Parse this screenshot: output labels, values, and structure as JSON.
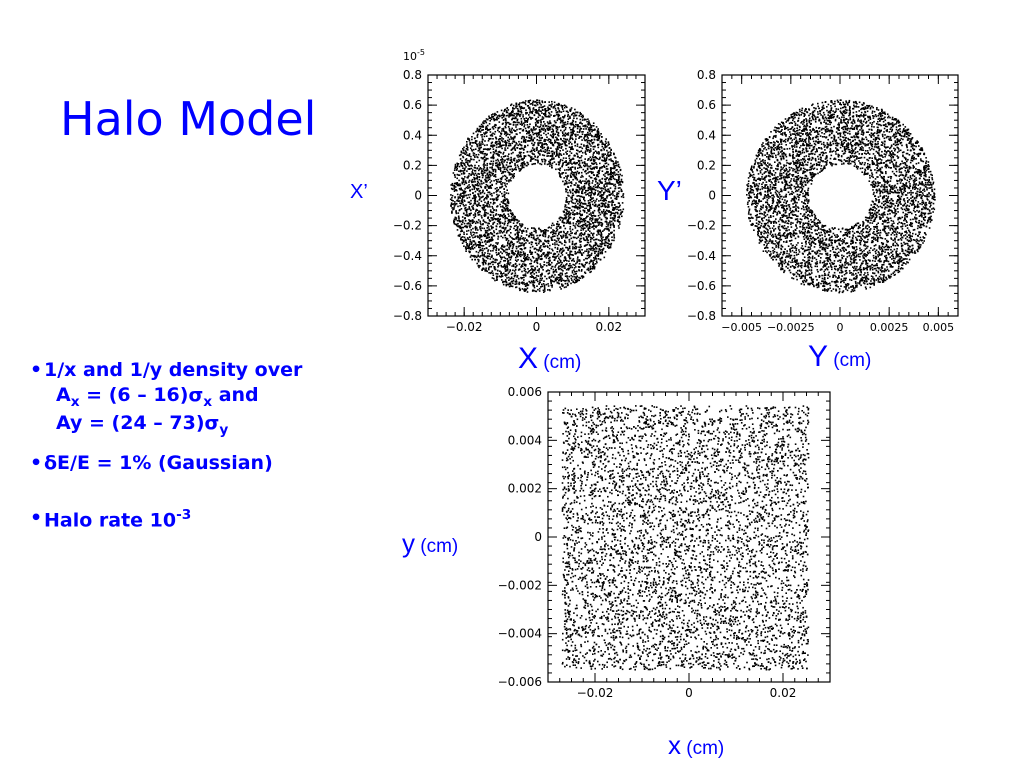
{
  "slide": {
    "title": "Halo Model",
    "bullets": [
      {
        "marker": "•",
        "line1_a": "1/x and 1/y density over",
        "line2": {
          "a": "A",
          "sub1": "x",
          "b": " = (6 – 16)σ",
          "sub2": "x",
          "c": " and"
        },
        "line3": {
          "a": "Ay = (24 – 73)σ",
          "sub1": "y"
        }
      },
      {
        "marker": "•",
        "text": "δE/E = 1% (Gaussian)"
      },
      {
        "marker": "•",
        "text_a": "Halo rate 10",
        "sup": "-3"
      }
    ]
  },
  "chart_data": [
    {
      "type": "scatter",
      "title": "",
      "xlabel": "X (cm)",
      "ylabel": "X’",
      "y_exponent_label": "10-5",
      "xlim": [
        -0.03,
        0.03
      ],
      "ylim": [
        -0.8,
        0.8
      ],
      "xticks": [
        "−0.02",
        "0",
        "0.02"
      ],
      "xtick_values": [
        -0.02,
        0,
        0.02
      ],
      "yticks": [
        "0.8",
        "0.6",
        "0.4",
        "0.2",
        "0",
        "−0.2",
        "−0.4",
        "−0.6",
        "−0.8"
      ],
      "ytick_values": [
        0.8,
        0.6,
        0.4,
        0.2,
        0,
        -0.2,
        -0.4,
        -0.6,
        -0.8
      ],
      "distribution": "annulus",
      "grid": false
    },
    {
      "type": "scatter",
      "title": "",
      "xlabel": "Y (cm)",
      "ylabel": "Y’",
      "xlim": [
        -0.006,
        0.006
      ],
      "ylim": [
        -0.8,
        0.8
      ],
      "xticks": [
        "−0.005",
        "−0.0025",
        "0",
        "0.0025",
        "0.005"
      ],
      "xtick_values": [
        -0.005,
        -0.0025,
        0,
        0.0025,
        0.005
      ],
      "yticks": [
        "0.8",
        "0.6",
        "0.4",
        "0.2",
        "0",
        "−0.2",
        "−0.4",
        "−0.6",
        "−0.8"
      ],
      "ytick_values": [
        0.8,
        0.6,
        0.4,
        0.2,
        0,
        -0.2,
        -0.4,
        -0.6,
        -0.8
      ],
      "distribution": "annulus",
      "grid": false
    },
    {
      "type": "scatter",
      "title": "",
      "xlabel": "x (cm)",
      "ylabel": "y (cm)",
      "xlim": [
        -0.03,
        0.03
      ],
      "ylim": [
        -0.006,
        0.006
      ],
      "xticks": [
        "−0.02",
        "0",
        "0.02"
      ],
      "xtick_values": [
        -0.02,
        0,
        0.02
      ],
      "yticks": [
        "0.006",
        "0.004",
        "0.002",
        "0",
        "−0.002",
        "−0.004",
        "−0.006"
      ],
      "ytick_values": [
        0.006,
        0.004,
        0.002,
        0,
        -0.002,
        -0.004,
        -0.006
      ],
      "distribution": "rectangle",
      "grid": false
    }
  ],
  "colors": {
    "accent": "#0000ff",
    "ink": "#000000"
  }
}
